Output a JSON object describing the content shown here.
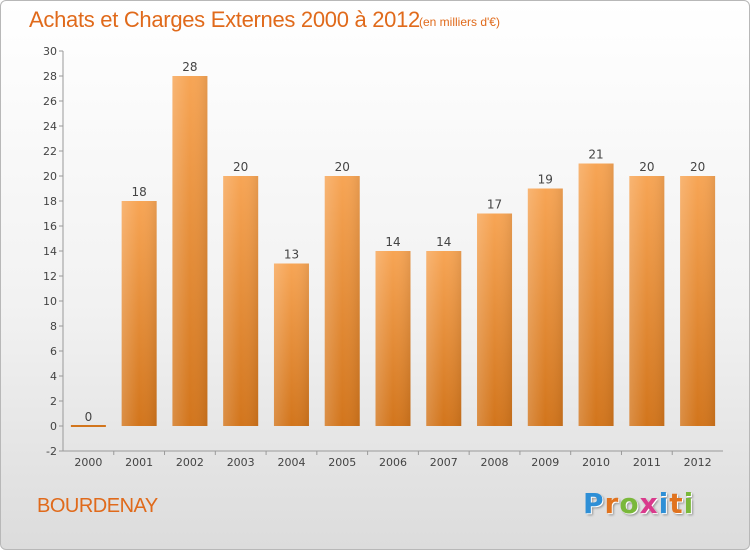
{
  "title": "Achats et Charges Externes 2000 à 2012",
  "subtitle": "(en milliers d'€)",
  "commune": "BOURDENAY",
  "logo": {
    "letters": [
      "P",
      "r",
      "o",
      "x",
      "i",
      "t",
      "i"
    ],
    "colors": [
      "#2e8fd6",
      "#e0731f",
      "#7ab83a",
      "#d93a8c",
      "#2e8fd6",
      "#e0731f",
      "#7ab83a"
    ]
  },
  "colors": {
    "bar_top": "#f7a555",
    "bar_bottom": "#d2751c",
    "title": "#e06a1b"
  },
  "chart_data": {
    "type": "bar",
    "categories": [
      "2000",
      "2001",
      "2002",
      "2003",
      "2004",
      "2005",
      "2006",
      "2007",
      "2008",
      "2009",
      "2010",
      "2011",
      "2012"
    ],
    "values": [
      0,
      18,
      28,
      20,
      13,
      20,
      14,
      14,
      17,
      19,
      21,
      20,
      20
    ],
    "data_labels": [
      "0",
      "18",
      "28",
      "20",
      "13",
      "20",
      "14",
      "14",
      "17",
      "19",
      "21",
      "20",
      "20"
    ],
    "y_ticks": [
      -2,
      0,
      2,
      4,
      6,
      8,
      10,
      12,
      14,
      16,
      18,
      20,
      22,
      24,
      26,
      28,
      30
    ],
    "ylim": [
      -2,
      30
    ],
    "grid": false,
    "legend": "none"
  }
}
